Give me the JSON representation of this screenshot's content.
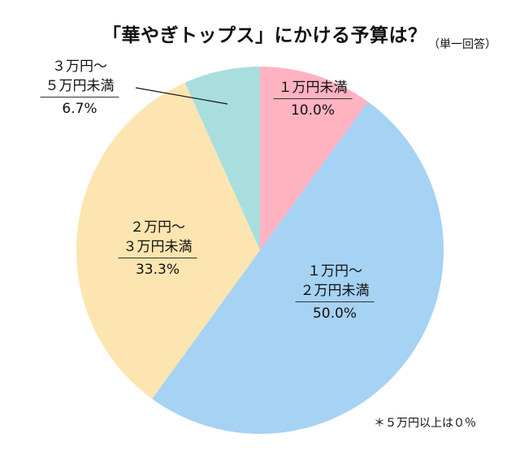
{
  "title": "「華やぎトップス」にかける予算は？",
  "subtitle": "（単一回答）",
  "note": "＊５万円以上は０％",
  "chart_data": {
    "type": "pie",
    "start": "top",
    "direction": "clockwise",
    "slices": [
      {
        "label_line1": "",
        "label_line2": "１万円未満",
        "value": 10.0,
        "pct_label": "10.0%",
        "color": "#FFB3C1"
      },
      {
        "label_line1": "１万円～",
        "label_line2": "２万円未満",
        "value": 50.0,
        "pct_label": "50.0%",
        "color": "#A6D2F4"
      },
      {
        "label_line1": "２万円～",
        "label_line2": "３万円未満",
        "value": 33.3,
        "pct_label": "33.3%",
        "color": "#FDE5B1"
      },
      {
        "label_line1": "３万円～",
        "label_line2": "５万円未満",
        "value": 6.7,
        "pct_label": "6.7%",
        "color": "#A9DEDE"
      }
    ]
  }
}
